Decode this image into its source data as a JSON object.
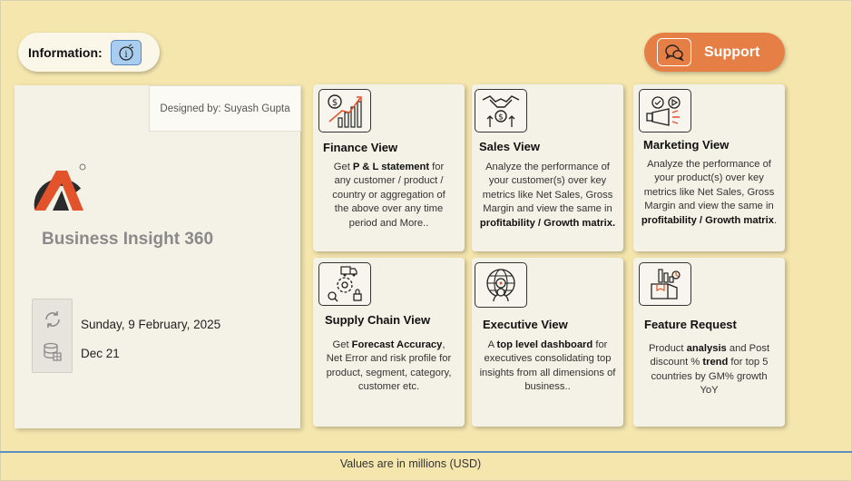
{
  "header": {
    "info_label": "Information:",
    "support_label": "Support"
  },
  "left_panel": {
    "designed_by": "Designed by: Suyash Gupta",
    "app_title": "Business Insight 360",
    "date": "Sunday, 9 February, 2025",
    "time": "Dec 21"
  },
  "cards": {
    "finance": {
      "title": "Finance View",
      "icon": "finance-chart-icon"
    },
    "sales": {
      "title": "Sales View",
      "icon": "handshake-dollar-icon"
    },
    "marketing": {
      "title": "Marketing View",
      "icon": "megaphone-icon"
    },
    "supply": {
      "title": "Supply Chain View",
      "icon": "supply-chain-icon"
    },
    "executive": {
      "title": "Executive View",
      "icon": "executive-globe-icon"
    },
    "feature": {
      "title": "Feature Request",
      "icon": "feature-box-icon"
    }
  },
  "card_text": {
    "finance": [
      "Get ",
      "P & L statement",
      " for any customer / product / country or aggregation of the above over any time period and More.."
    ],
    "sales": [
      "Analyze the performance of your customer(s) over key metrics like Net Sales, Gross Margin and view the same in ",
      "profitability / Growth matrix."
    ],
    "marketing": [
      "Analyze the performance of your product(s) over key metrics like Net Sales, Gross Margin and view the same in ",
      "profitability / Growth matrix",
      "."
    ],
    "supply": [
      "Get ",
      "Forecast Accuracy",
      ", Net Error and risk profile for product, segment, category, customer etc."
    ],
    "executive": [
      "A ",
      "top level dashboard",
      " for executives consolidating top insights from all dimensions of business.."
    ],
    "feature": [
      "Product ",
      "analysis",
      " and Post discount % ",
      "trend",
      " for top 5 countries by GM% growth YoY"
    ]
  },
  "footer": {
    "text": "Values are in millions (USD)"
  },
  "colors": {
    "background": "#f5e6ae",
    "support": "#e57f45",
    "info_button": "#a9cdef",
    "panel": "#f4f1e6",
    "footer_line": "#5b8fc1"
  }
}
